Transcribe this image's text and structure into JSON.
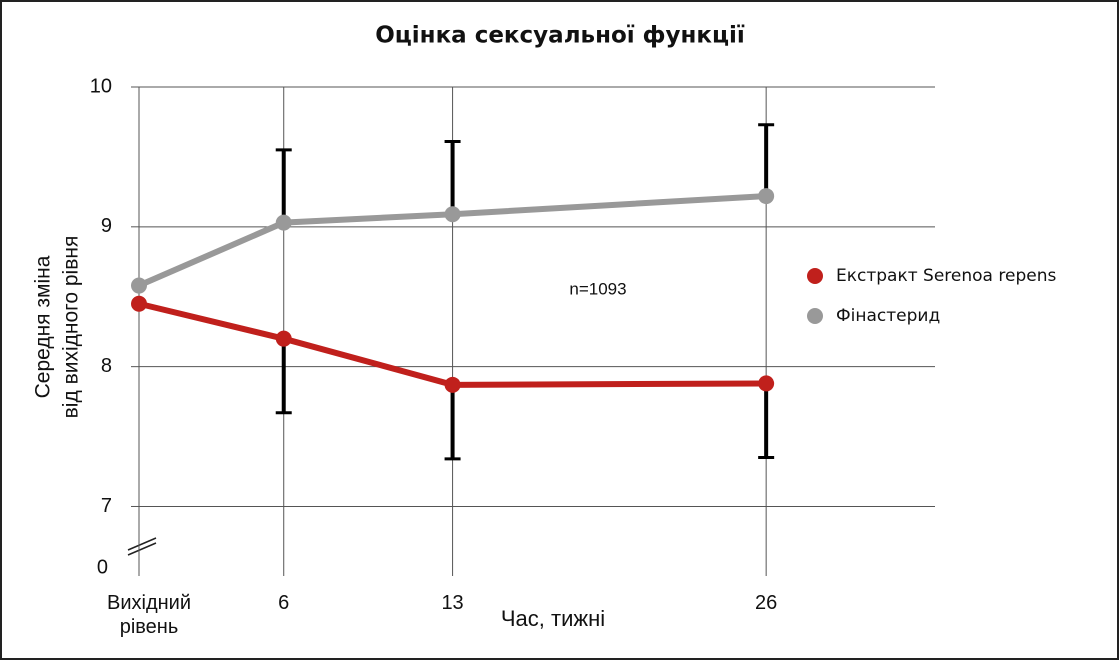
{
  "chart_data": {
    "type": "line",
    "title": "Оцінка сексуальної функції",
    "ylabel": [
      "Середня зміна",
      "від вихідного рівня"
    ],
    "xlabel": "Час, тижні",
    "x": [
      0,
      6,
      13,
      26
    ],
    "xlim": [
      0,
      33
    ],
    "xticks": [
      {
        "value": 0,
        "label": "Вихідний рівень"
      },
      6,
      13,
      26
    ],
    "ylim": [
      6.56,
      10
    ],
    "yticks": [
      7,
      8,
      9,
      10
    ],
    "y_break_label": "0",
    "grid": true,
    "legend": "right",
    "annotation": "n=1093",
    "series": [
      {
        "name": "Екстракт Serenoa repens",
        "color": "#c0201c",
        "values": [
          8.45,
          8.2,
          7.87,
          7.88
        ],
        "errors": [
          null,
          0.53,
          0.53,
          0.53
        ],
        "error_direction": "down"
      },
      {
        "name": "Фінастерид",
        "color": "#999999",
        "values": [
          8.58,
          9.03,
          9.09,
          9.22
        ],
        "errors": [
          null,
          0.52,
          0.52,
          0.51
        ],
        "error_direction": "up"
      }
    ]
  }
}
